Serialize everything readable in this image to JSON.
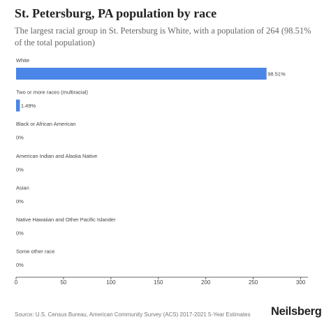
{
  "header": {
    "title": "St. Petersburg, PA population by race",
    "subtitle": "The largest racial group in St. Petersburg is White, with a population of 264 (98.51% of the total population)"
  },
  "chart_data": {
    "type": "bar",
    "orientation": "horizontal",
    "categories": [
      "White",
      "Two or more races (multiracial)",
      "Black or African American",
      "American Indian and Alaska Native",
      "Asian",
      "Native Hawaiian and Other Pacific Islander",
      "Some other race"
    ],
    "values": [
      264,
      4,
      0,
      0,
      0,
      0,
      0
    ],
    "data_labels": [
      "98.51%",
      "1.49%",
      "0%",
      "0%",
      "0%",
      "0%",
      "0%"
    ],
    "xticks": [
      0,
      50,
      100,
      150,
      200,
      250,
      300
    ],
    "xlim": [
      0,
      310
    ],
    "bar_color": "#4a86e8",
    "grid": false,
    "legend": "none"
  },
  "footer": {
    "source": "Source: U.S. Census Bureau, American Community Survey (ACS) 2017-2021 5-Year Estimates",
    "brand": "Neilsberg"
  }
}
